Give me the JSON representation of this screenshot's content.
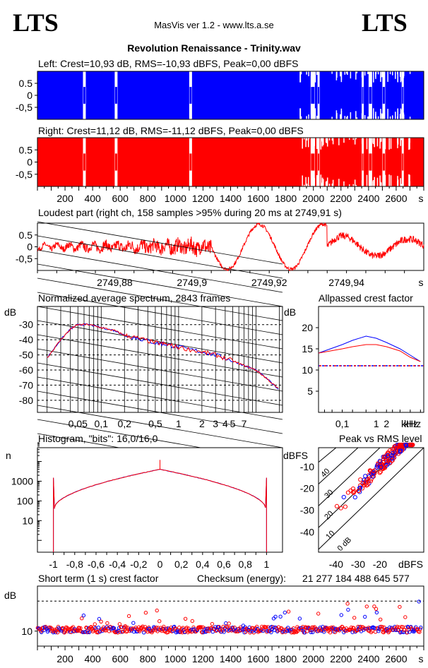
{
  "header": {
    "logo_left": "LTS",
    "logo_right": "LTS",
    "app": "MasVis ver 1.2 - www.lts.a.se",
    "file": "Revolution Renaissance - Trinity.wav"
  },
  "colors": {
    "left": "#0000ff",
    "right": "#ff0000",
    "bg": "#ffffff",
    "grid": "#000000"
  },
  "chart_data": [
    {
      "id": "left",
      "type": "area",
      "title": "Left: Crest=10,93 dB, RMS=-10,93 dBFS, Peak=0,00 dBFS",
      "yticks": [
        "0.5",
        "0",
        "-0,5"
      ],
      "ylim": [
        -1,
        1
      ],
      "xlim": [
        0,
        2800
      ],
      "series": [
        {
          "values": []
        }
      ]
    },
    {
      "id": "right",
      "type": "area",
      "title": "Right: Crest=11,12 dB, RMS=-11,12 dBFS, Peak=0,00 dBFS",
      "yticks": [
        "0.5",
        "0",
        "-0,5"
      ],
      "ylim": [
        -1,
        1
      ],
      "xlim": [
        0,
        2800
      ],
      "xticks": [
        200,
        400,
        600,
        800,
        1000,
        1200,
        1400,
        1600,
        1800,
        2000,
        2200,
        2400,
        2600
      ],
      "xunit": "s",
      "series": [
        {
          "values": []
        }
      ]
    },
    {
      "id": "loudest",
      "type": "line",
      "title": "Loudest part (right ch, 158 samples >95% during 20 ms at 2749,91 s)",
      "yticks": [
        "0.5",
        "0",
        "-0,5"
      ],
      "ylim": [
        -1,
        1
      ],
      "xlim": [
        2749.86,
        2749.96
      ],
      "xticks": [
        "2749,88",
        "2749,9",
        "2749,92",
        "2749,94"
      ],
      "xunit": "s"
    },
    {
      "id": "spectrum",
      "type": "line",
      "title": "Normalized average spectrum, 2843 frames",
      "ylabel": "dB",
      "yticks": [
        -30,
        -40,
        -50,
        -60,
        -70,
        -80
      ],
      "ylim": [
        -88,
        -18
      ],
      "xticks": [
        "0,05",
        "0,1",
        "0,2",
        "0,5",
        "1",
        "2",
        "3",
        "4",
        "5",
        "7"
      ],
      "xunit": "kHz",
      "x_khz": [
        0.02,
        0.03,
        0.04,
        0.05,
        0.07,
        0.1,
        0.15,
        0.2,
        0.3,
        0.5,
        0.7,
        1,
        2,
        3,
        5,
        7,
        10,
        14,
        20
      ],
      "y_db": [
        -52,
        -40,
        -33,
        -30,
        -30,
        -32,
        -34,
        -37,
        -39,
        -42,
        -43,
        -45,
        -48,
        -50,
        -54,
        -57,
        -60,
        -66,
        -73
      ]
    },
    {
      "id": "allpass",
      "type": "line",
      "title": "Allpassed crest factor",
      "ylabel": "dB",
      "yticks": [
        20,
        15,
        10,
        5
      ],
      "ylim": [
        0,
        25
      ],
      "xticks": [
        "0,1",
        "1",
        "2"
      ],
      "xunit": "kHz",
      "series": [
        {
          "color": "#0000ff",
          "x": [
            0.02,
            0.1,
            0.2,
            0.5,
            1,
            2,
            5,
            10,
            20
          ],
          "y": [
            14,
            16,
            17,
            18,
            17.5,
            16.5,
            15,
            13.5,
            12
          ]
        },
        {
          "color": "#ff0000",
          "x": [
            0.02,
            0.1,
            0.2,
            0.5,
            1,
            2,
            5,
            10,
            20
          ],
          "y": [
            14,
            15,
            15.5,
            16,
            16,
            15.5,
            14.5,
            13,
            12
          ]
        }
      ],
      "reference_db": 11
    },
    {
      "id": "histogram",
      "type": "line",
      "title": "Histogram, \"bits\": 16,0/16,0",
      "ylabel": "n",
      "yticks": [
        "1000",
        "100",
        "10"
      ],
      "xticks": [
        "-1",
        "-0,8",
        "-0,6",
        "-0,4",
        "-0,2",
        "0",
        "0,2",
        "0,4",
        "0,6",
        "0,8",
        "1"
      ],
      "xlim": [
        -1.15,
        1.15
      ]
    },
    {
      "id": "peak_rms",
      "type": "scatter",
      "title": "Peak vs RMS level",
      "ylabel": "dBFS",
      "xlabel": "dBFS",
      "yticks": [
        -10,
        -20,
        -30,
        -40
      ],
      "xticks": [
        -40,
        -30,
        -20
      ],
      "diagonal_labels": [
        "40",
        "30",
        "20",
        "10",
        "0 dB"
      ]
    },
    {
      "id": "shortterm",
      "type": "scatter",
      "title": "Short term (1 s) crest factor",
      "checksum_label": "Checksum (energy):",
      "checksum_value": "21 277 184 488 645 577",
      "ylabel": "dB",
      "yticks": [
        "10"
      ],
      "xticks": [
        200,
        400,
        600,
        800,
        1000,
        1200,
        1400,
        1600,
        1800,
        2000,
        2200,
        2400,
        2600
      ],
      "xunit": "s"
    }
  ]
}
